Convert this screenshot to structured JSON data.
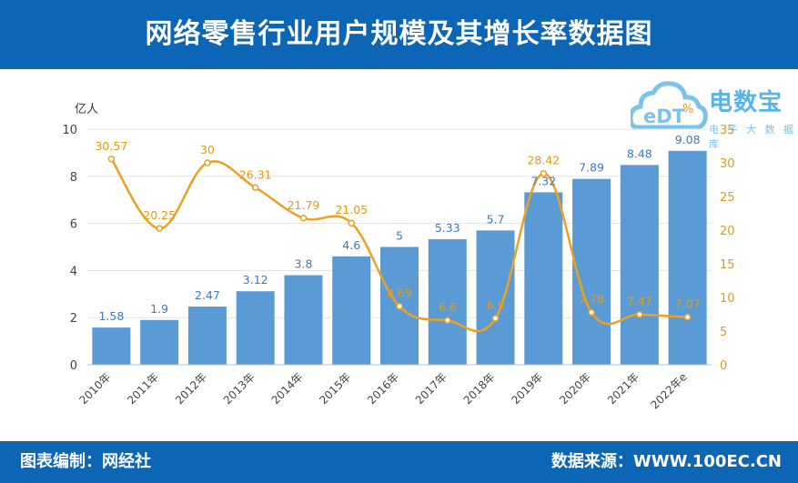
{
  "header": {
    "title": "网络零售行业用户规模及其增长率数据图"
  },
  "footer": {
    "left": "图表编制：网经社",
    "right": "数据来源：WWW.100EC.CN"
  },
  "logo": {
    "main": "电数宝",
    "sub": "电 子 大 数 据 库",
    "mark": "eDT",
    "icon": "cloud-logo-icon"
  },
  "colors": {
    "header": "#0c65b5",
    "bar": "#5b9bd5",
    "line": "#f0a020",
    "bar_label": "#3d7cc0",
    "line_label": "#e69a10"
  },
  "chart_data": {
    "type": "bar",
    "categories": [
      "2010年",
      "2011年",
      "2012年",
      "2013年",
      "2014年",
      "2015年",
      "2016年",
      "2017年",
      "2018年",
      "2019年",
      "2020年",
      "2021年",
      "2022年e"
    ],
    "series": [
      {
        "type": "bar",
        "axis": "left",
        "values": [
          1.58,
          1.9,
          2.47,
          3.12,
          3.8,
          4.6,
          5,
          5.33,
          5.7,
          7.32,
          7.89,
          8.48,
          9.08
        ]
      },
      {
        "type": "line",
        "axis": "right",
        "smooth": true,
        "values": [
          30.57,
          20.25,
          30,
          26.31,
          21.79,
          21.05,
          8.69,
          6.6,
          6.9,
          28.42,
          7.78,
          7.47,
          7.07
        ]
      }
    ],
    "ylabel": "亿人",
    "y2label": "%",
    "ylim": [
      0,
      10
    ],
    "yticks": [
      0,
      2,
      4,
      6,
      8,
      10
    ],
    "y2lim": [
      0,
      35
    ],
    "y2ticks": [
      0,
      5,
      10,
      15,
      20,
      25,
      30,
      35
    ],
    "grid": true,
    "legend": "none"
  }
}
